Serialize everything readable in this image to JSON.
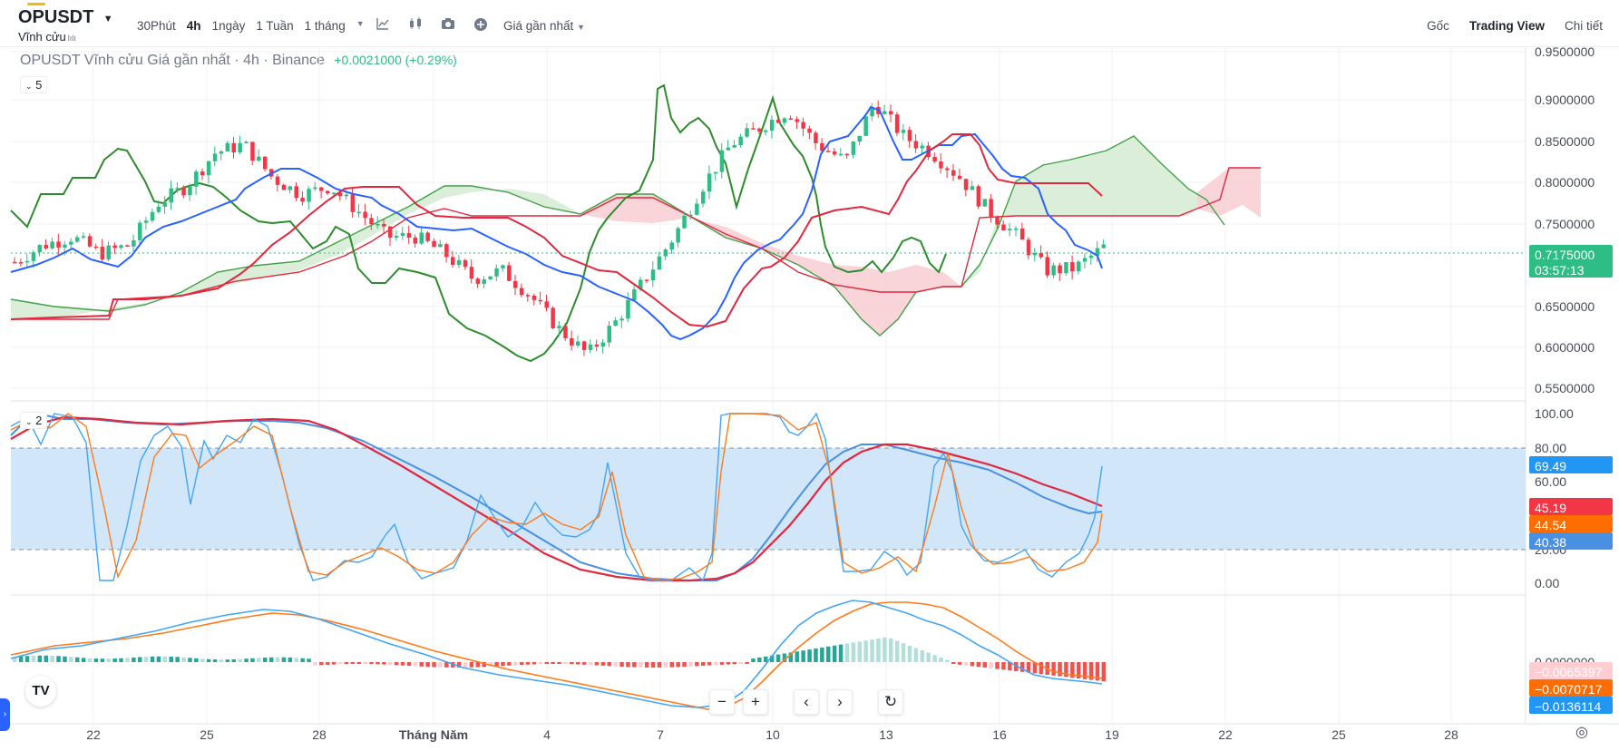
{
  "header": {
    "symbol": "OPUSDT",
    "contract_type": "Vĩnh cửu",
    "contract_badge": "lılı",
    "intervals": [
      {
        "label": "30Phút",
        "active": false
      },
      {
        "label": "4h",
        "active": true
      },
      {
        "label": "1ngày",
        "active": false
      },
      {
        "label": "1 Tuần",
        "active": false
      },
      {
        "label": "1 tháng",
        "active": false
      }
    ],
    "interval_dropdown_icon": "chevron-down-icon",
    "tool_icons": [
      "indicator-icon",
      "candlestick-icon",
      "camera-icon",
      "add-icon"
    ],
    "price_type": "Giá gần nhất",
    "right_menu": [
      {
        "label": "Gốc",
        "active": false
      },
      {
        "label": "Trading View",
        "active": true
      },
      {
        "label": "Chi tiết",
        "active": false
      }
    ]
  },
  "legend": {
    "title": "OPUSDT Vĩnh cửu Giá gần nhất · 4h · Binance",
    "change": "+0.0021000 (+0.29%)",
    "main_collapse": "5",
    "stoch_collapse": "2"
  },
  "price_axis": [
    "0.9500000",
    "0.9000000",
    "0.8500000",
    "0.8000000",
    "0.7500000",
    "0.6500000",
    "0.6000000",
    "0.5500000"
  ],
  "last_price": {
    "price": "0.7175000",
    "countdown": "03:57:13"
  },
  "stoch_axis": [
    "100.00",
    "80.00",
    "60.00",
    "20.00",
    "0.00"
  ],
  "stoch_tags": [
    {
      "value": "69.49",
      "color": "#2196f3"
    },
    {
      "value": "45.19",
      "color": "#f23645"
    },
    {
      "value": "44.54",
      "color": "#ff6d00"
    },
    {
      "value": "40.38",
      "color": "#4a90e2"
    }
  ],
  "macd_axis": [
    "0.0000000"
  ],
  "macd_tags": [
    {
      "value": "−0.0065397",
      "color": "#ffcdd2",
      "text": "#1e2329"
    },
    {
      "value": "−0.0070717",
      "color": "#ff6d00",
      "text": "#ffffff"
    },
    {
      "value": "−0.0136114",
      "color": "#2196f3",
      "text": "#ffffff"
    }
  ],
  "time_axis": [
    "22",
    "25",
    "28",
    "Tháng Năm",
    "4",
    "7",
    "10",
    "13",
    "16",
    "19",
    "22",
    "25",
    "28"
  ],
  "nav_controls": [
    "−",
    "+",
    "‹",
    "›",
    "↻"
  ],
  "colors": {
    "up": "#2ebd85",
    "down": "#f23645",
    "tenkan": "#2962ff",
    "kijun": "#e0283f",
    "lagging": "#2e8b2e",
    "cloud_up": "#d6ecd6",
    "cloud_down": "#f8cfd4",
    "stoch_band": "#d2e6fa"
  },
  "chart_data": {
    "type": "candlestick",
    "title": "OPUSDT Vĩnh cửu Giá gần nhất · 4h · Binance",
    "ylim": [
      0.55,
      0.95
    ],
    "price_trend": [
      0.7,
      0.72,
      0.73,
      0.71,
      0.72,
      0.77,
      0.79,
      0.83,
      0.84,
      0.8,
      0.78,
      0.79,
      0.76,
      0.73,
      0.73,
      0.71,
      0.68,
      0.69,
      0.66,
      0.62,
      0.59,
      0.63,
      0.68,
      0.73,
      0.79,
      0.84,
      0.86,
      0.88,
      0.84,
      0.82,
      0.89,
      0.85,
      0.83,
      0.8,
      0.76,
      0.73,
      0.69,
      0.6925,
      0.7175
    ],
    "stochastic": {
      "k": 69.49,
      "d": 45.19,
      "k2": 44.54,
      "d2": 40.38,
      "bands": [
        20,
        80
      ]
    },
    "macd": {
      "histogram": -0.0065397,
      "signal": -0.0070717,
      "macd": -0.0136114
    }
  }
}
